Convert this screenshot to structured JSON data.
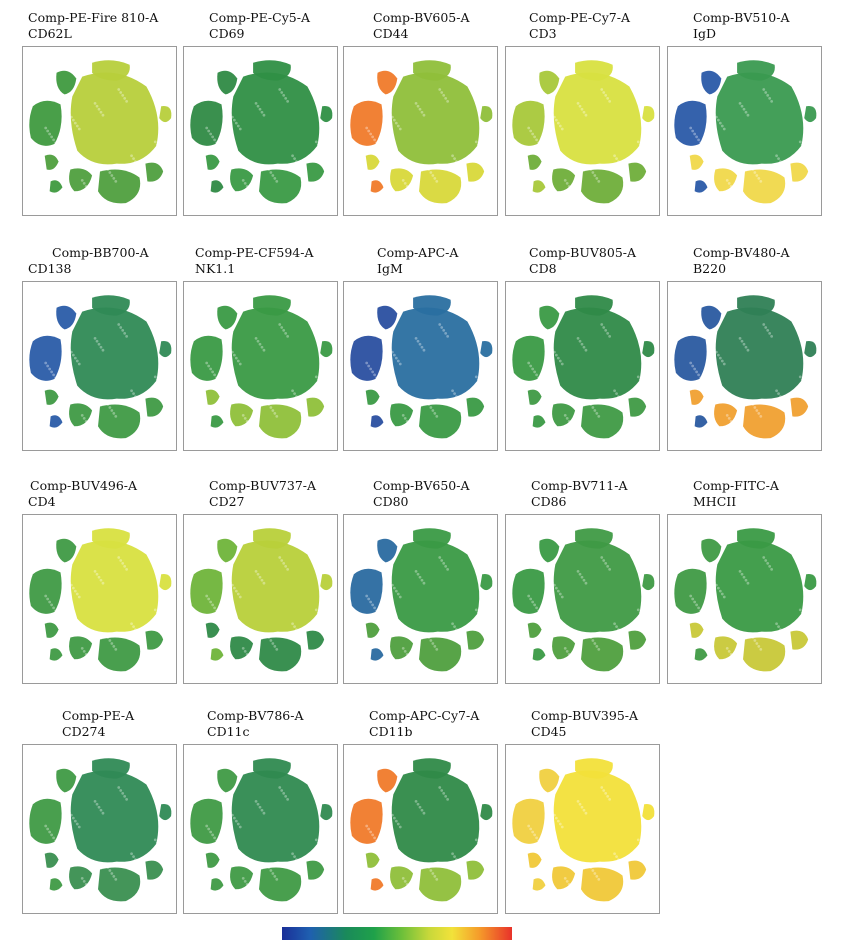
{
  "panels": [
    {
      "channel": "Comp-PE-Fire 810-A",
      "marker": "CD62L",
      "main": "#b7cf3b",
      "left": "#3f9a3f",
      "bottom": "#4f9f3e"
    },
    {
      "channel": "Comp-PE-Cy5-A",
      "marker": "CD69",
      "main": "#2f8f45",
      "left": "#2f8a45",
      "bottom": "#3a9a45"
    },
    {
      "channel": "Comp-BV605-A",
      "marker": "CD44",
      "main": "#8fbf3a",
      "left": "#f07a2a",
      "bottom": "#d8d83a"
    },
    {
      "channel": "Comp-PE-Cy7-A",
      "marker": "CD3",
      "main": "#d8e040",
      "left": "#a8c83a",
      "bottom": "#6fae3a"
    },
    {
      "channel": "Comp-BV510-A",
      "marker": "IgD",
      "main": "#3a9a50",
      "left": "#2a5aa8",
      "bottom": "#f0d84a"
    },
    {
      "channel": "Comp-BB700-A",
      "marker": "CD138",
      "main": "#2f8a55",
      "left": "#2a5ca8",
      "bottom": "#3f9a45"
    },
    {
      "channel": "Comp-PE-CF594-A",
      "marker": "NK1.1",
      "main": "#3a9a45",
      "left": "#3a9a45",
      "bottom": "#8fc03a"
    },
    {
      "channel": "Comp-APC-A",
      "marker": "IgM",
      "main": "#2a6fa0",
      "left": "#2a4fa0",
      "bottom": "#3a9a45"
    },
    {
      "channel": "Comp-BUV805-A",
      "marker": "CD8",
      "main": "#2f8a48",
      "left": "#3a9a45",
      "bottom": "#3f9a45"
    },
    {
      "channel": "Comp-BV480-A",
      "marker": "B220",
      "main": "#2f7f55",
      "left": "#2a5aa0",
      "bottom": "#f0a030"
    },
    {
      "channel": "Comp-BUV496-A",
      "marker": "CD4",
      "main": "#d8e040",
      "left": "#3f9a45",
      "bottom": "#3f9a45"
    },
    {
      "channel": "Comp-BUV737-A",
      "marker": "CD27",
      "main": "#b8d03a",
      "left": "#6fb43a",
      "bottom": "#2f8a48"
    },
    {
      "channel": "Comp-BV650-A",
      "marker": "CD80",
      "main": "#3a9a45",
      "left": "#2a6aa0",
      "bottom": "#4f9f3e"
    },
    {
      "channel": "Comp-BV711-A",
      "marker": "CD86",
      "main": "#3f9a45",
      "left": "#3a9a45",
      "bottom": "#4f9f3e"
    },
    {
      "channel": "Comp-FITC-A",
      "marker": "MHCII",
      "main": "#3a9a45",
      "left": "#3f9a45",
      "bottom": "#c8c838"
    },
    {
      "channel": "Comp-PE-A",
      "marker": "CD274",
      "main": "#2f8a55",
      "left": "#3f9a45",
      "bottom": "#3a8f50"
    },
    {
      "channel": "Comp-BV786-A",
      "marker": "CD11c",
      "main": "#2f8a50",
      "left": "#3f9a45",
      "bottom": "#3f9a45"
    },
    {
      "channel": "Comp-APC-Cy7-A",
      "marker": "CD11b",
      "main": "#2f8a48",
      "left": "#f07a2a",
      "bottom": "#8fbf3a"
    },
    {
      "channel": "Comp-BUV395-A",
      "marker": "CD45",
      "main": "#f2e03a",
      "left": "#f0d040",
      "bottom": "#f0c838"
    }
  ],
  "colorbar": {
    "stops": [
      "#1a2f98",
      "#1a8a5a",
      "#6cbf3a",
      "#f2e23a",
      "#e8322a"
    ]
  }
}
